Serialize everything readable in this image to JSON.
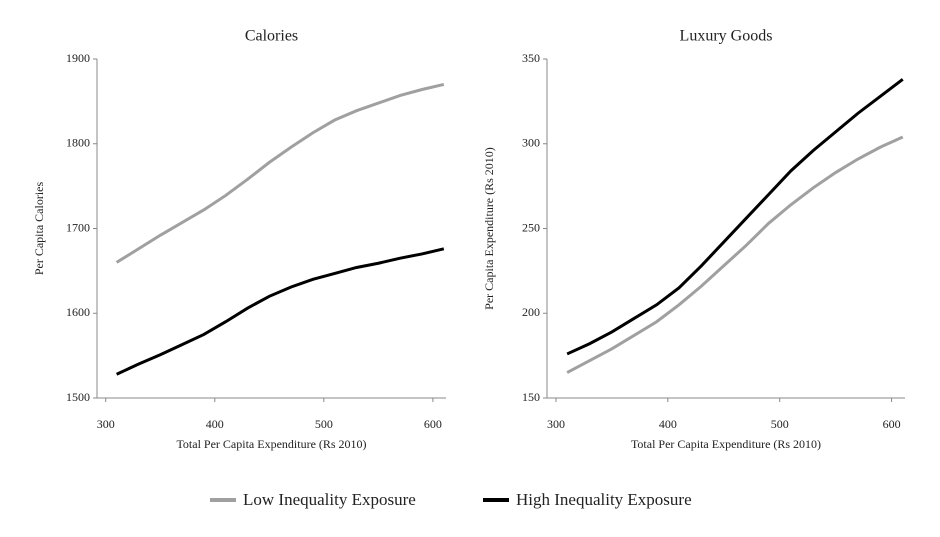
{
  "chart_data": [
    {
      "type": "line",
      "title": "Calories",
      "x_label": "Total Per Capita Expenditure (Rs 2010)",
      "y_label": "Per Capita Calories",
      "x": [
        310,
        330,
        350,
        370,
        390,
        410,
        430,
        450,
        470,
        490,
        510,
        530,
        550,
        570,
        590,
        610
      ],
      "series": [
        {
          "name": "Low Inequality Exposure",
          "color": "#a0a0a0",
          "values": [
            1660,
            1676,
            1692,
            1707,
            1722,
            1739,
            1758,
            1778,
            1796,
            1813,
            1828,
            1839,
            1848,
            1857,
            1864,
            1870
          ]
        },
        {
          "name": "High Inequality Exposure",
          "color": "#000000",
          "values": [
            1528,
            1540,
            1551,
            1563,
            1575,
            1590,
            1606,
            1620,
            1631,
            1640,
            1647,
            1654,
            1659,
            1665,
            1670,
            1676
          ]
        }
      ],
      "xlim": [
        292,
        612
      ],
      "xticks": [
        300,
        400,
        500,
        600
      ],
      "ylim": [
        1500,
        1900
      ],
      "yticks": [
        1500,
        1600,
        1700,
        1800,
        1900
      ]
    },
    {
      "type": "line",
      "title": "Luxury Goods",
      "x_label": "Total Per Capita Expenditure (Rs 2010)",
      "y_label": "Per Capita Expenditure (Rs 2010)",
      "x": [
        310,
        330,
        350,
        370,
        390,
        410,
        430,
        450,
        470,
        490,
        510,
        530,
        550,
        570,
        590,
        610
      ],
      "series": [
        {
          "color": "#a0a0a0",
          "values": [
            165,
            172,
            179,
            187,
            195,
            205,
            216,
            228,
            240,
            253,
            264,
            274,
            283,
            291,
            298,
            304
          ]
        },
        {
          "color": "#000000",
          "values": [
            176,
            182,
            189,
            197,
            205,
            215,
            228,
            242,
            256,
            270,
            284,
            296,
            307,
            318,
            328,
            338
          ]
        }
      ],
      "xlim": [
        292,
        612
      ],
      "xticks": [
        300,
        400,
        500,
        600
      ],
      "ylim": [
        150,
        350
      ],
      "yticks": [
        150,
        200,
        250,
        300,
        350
      ]
    }
  ]
}
